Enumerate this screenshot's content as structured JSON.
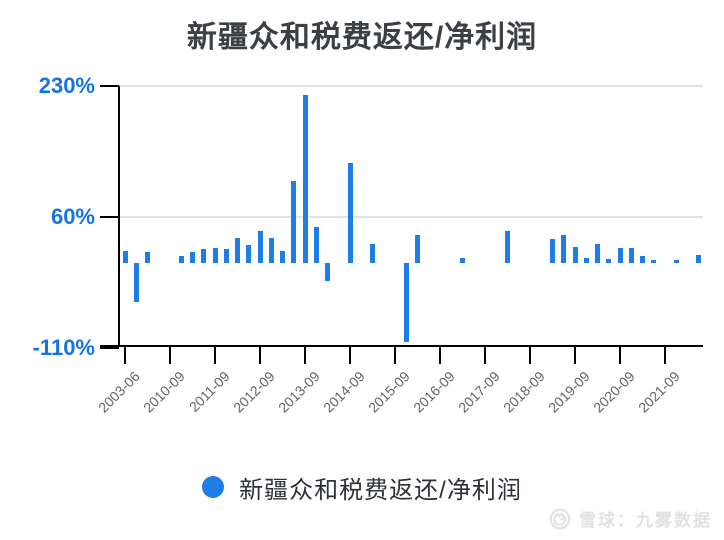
{
  "title": {
    "text": "新疆众和税费返还/净利润"
  },
  "legend": {
    "label": "新疆众和税费返还/净利润"
  },
  "watermark": {
    "text": "雪球：九雾数据",
    "logo": "xueqiu-snowball-logo"
  },
  "colors": {
    "bar": "#1e7de8",
    "y_label_blue": "#1673e6",
    "x_label_gray": "#606468",
    "title_color": "#3c4045",
    "legend_text": "#2e3238",
    "gridline": "#e3e3e3",
    "axis": "#000000",
    "watermark_gray": "#e2e2e2"
  },
  "chart_data": {
    "type": "bar",
    "title": "新疆众和税费返还/净利润",
    "series_name": "新疆众和税费返还/净利润",
    "value_unit": "percent",
    "ylim": [
      -110,
      230
    ],
    "y_ticks": [
      {
        "value": 230,
        "label": "230%"
      },
      {
        "value": 60,
        "label": "60%"
      },
      {
        "value": -110,
        "label": "-110%"
      }
    ],
    "gridlines_at": [
      230,
      60
    ],
    "legend_position": "bottom",
    "x_ticks": [
      {
        "slot": 0,
        "label": "2003-06"
      },
      {
        "slot": 4,
        "label": "2010-09"
      },
      {
        "slot": 8,
        "label": "2011-09"
      },
      {
        "slot": 12,
        "label": "2012-09"
      },
      {
        "slot": 16,
        "label": "2013-09"
      },
      {
        "slot": 20,
        "label": "2014-09"
      },
      {
        "slot": 24,
        "label": "2015-09"
      },
      {
        "slot": 28,
        "label": "2016-09"
      },
      {
        "slot": 32,
        "label": "2017-09"
      },
      {
        "slot": 36,
        "label": "2018-09"
      },
      {
        "slot": 40,
        "label": "2019-09"
      },
      {
        "slot": 44,
        "label": "2020-09"
      },
      {
        "slot": 48,
        "label": "2021-09"
      }
    ],
    "bars": [
      {
        "slot": 0,
        "value": 16,
        "label": "2003-06"
      },
      {
        "slot": 1,
        "value": -50
      },
      {
        "slot": 2,
        "value": 14
      },
      {
        "slot": 5,
        "value": 9
      },
      {
        "slot": 6,
        "value": 14
      },
      {
        "slot": 7,
        "value": 18
      },
      {
        "slot": 8,
        "value": 20,
        "label": "2011-09"
      },
      {
        "slot": 9,
        "value": 18
      },
      {
        "slot": 10,
        "value": 33
      },
      {
        "slot": 11,
        "value": 23
      },
      {
        "slot": 12,
        "value": 42,
        "label": "2012-09"
      },
      {
        "slot": 13,
        "value": 32
      },
      {
        "slot": 14,
        "value": 16
      },
      {
        "slot": 15,
        "value": 106
      },
      {
        "slot": 16,
        "value": 218,
        "label": "2013-09"
      },
      {
        "slot": 17,
        "value": 47
      },
      {
        "slot": 18,
        "value": -23
      },
      {
        "slot": 20,
        "value": 130,
        "label": "2014-09"
      },
      {
        "slot": 22,
        "value": 25
      },
      {
        "slot": 25,
        "value": -103
      },
      {
        "slot": 26,
        "value": 36
      },
      {
        "slot": 30,
        "value": 6
      },
      {
        "slot": 34,
        "value": 42
      },
      {
        "slot": 38,
        "value": 31
      },
      {
        "slot": 39,
        "value": 36
      },
      {
        "slot": 40,
        "value": 21,
        "label": "2019-09"
      },
      {
        "slot": 41,
        "value": 6
      },
      {
        "slot": 42,
        "value": 25
      },
      {
        "slot": 43,
        "value": 5
      },
      {
        "slot": 44,
        "value": 20,
        "label": "2020-09"
      },
      {
        "slot": 45,
        "value": 20
      },
      {
        "slot": 46,
        "value": 9
      },
      {
        "slot": 47,
        "value": 4
      },
      {
        "slot": 49,
        "value": 4
      },
      {
        "slot": 51,
        "value": 10
      }
    ]
  }
}
